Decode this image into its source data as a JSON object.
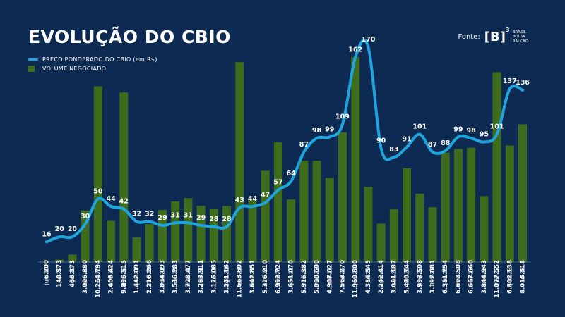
{
  "title": "EVOLUÇÃO DO CBIO",
  "source": {
    "label": "Fonte:",
    "logo_mark": "[B]",
    "logo_sup": "3",
    "logo_lines": [
      "BRASIL",
      "BOLSA",
      "BALCÃO"
    ]
  },
  "colors": {
    "background": "#0d2b52",
    "line": "#1fa5de",
    "bar": "#3e6b1c",
    "text": "#ffffff"
  },
  "chart_data": {
    "type": "bar",
    "title": "EVOLUÇÃO DO CBIO",
    "categories": [
      "jun-20",
      "jul-20",
      "ago-20",
      "set-20",
      "out-20",
      "nov-20",
      "dez-20",
      "jan-21",
      "fev-21",
      "mar-21",
      "abr-21",
      "mai-21",
      "jun-21",
      "jul-21",
      "ago-21",
      "set-21",
      "out-21",
      "nov-21",
      "dez-21",
      "jan-22",
      "fev-22",
      "mar-22",
      "abr-22",
      "mai-22",
      "jun-22",
      "jul-22",
      "ago-22",
      "set-22",
      "out-22",
      "nov-22",
      "dez-22",
      "jan-23",
      "fev-23",
      "mar-23",
      "abr-23",
      "mai-23",
      "jun-23",
      "jul-23"
    ],
    "series": [
      {
        "name": "VOLUME NEGOCIADO",
        "type": "bar",
        "values": [
          6200,
          140573,
          436373,
          3006880,
          10254794,
          2408424,
          9896515,
          1442091,
          2216266,
          3034093,
          3536283,
          3728477,
          3283911,
          3125085,
          3271162,
          11663602,
          3642851,
          5326210,
          6992724,
          3651070,
          5915382,
          5908608,
          4907027,
          7563270,
          11969800,
          4384545,
          2242414,
          3081187,
          5470744,
          3993508,
          3197881,
          6381754,
          6603508,
          6667660,
          3844943,
          11077552,
          6802138,
          8035518
        ],
        "labels": [
          "6.200",
          "140.573",
          "436.373",
          "3.006.880",
          "10.254.794",
          "2.408.424",
          "9.896.515",
          "1.442.091",
          "2.216.266",
          "3.034.093",
          "3.536.283",
          "3.728.477",
          "3.283.911",
          "3.125.085",
          "3.271.162",
          "11.663.602",
          "3.642.851",
          "5.326.210",
          "6.992.724",
          "3.651.070",
          "5.915.382",
          "5.908.608",
          "4.907.027",
          "7.563.270",
          "11.969.800",
          "4.384.545",
          "2.242.414",
          "3.081.187",
          "5.470.744",
          "3.993.508",
          "3.197.881",
          "6.381.754",
          "6.603.508",
          "6.667.660",
          "3.844.943",
          "11.077.552",
          "6.802.138",
          "8.035.518"
        ]
      },
      {
        "name": "PREÇO PONDERADO  DO CBIO (em R$)",
        "type": "line",
        "values": [
          16,
          20,
          20,
          30,
          50,
          44,
          42,
          32,
          32,
          29,
          31,
          31,
          29,
          28,
          28,
          43,
          44,
          47,
          57,
          64,
          87,
          98,
          99,
          109,
          162,
          170,
          90,
          83,
          91,
          101,
          87,
          88,
          99,
          98,
          95,
          101,
          137,
          136
        ]
      }
    ],
    "volume_range": [
      0,
      12000000
    ],
    "price_range": [
      0,
      185
    ],
    "legend_position": "top-left",
    "grid": false
  }
}
